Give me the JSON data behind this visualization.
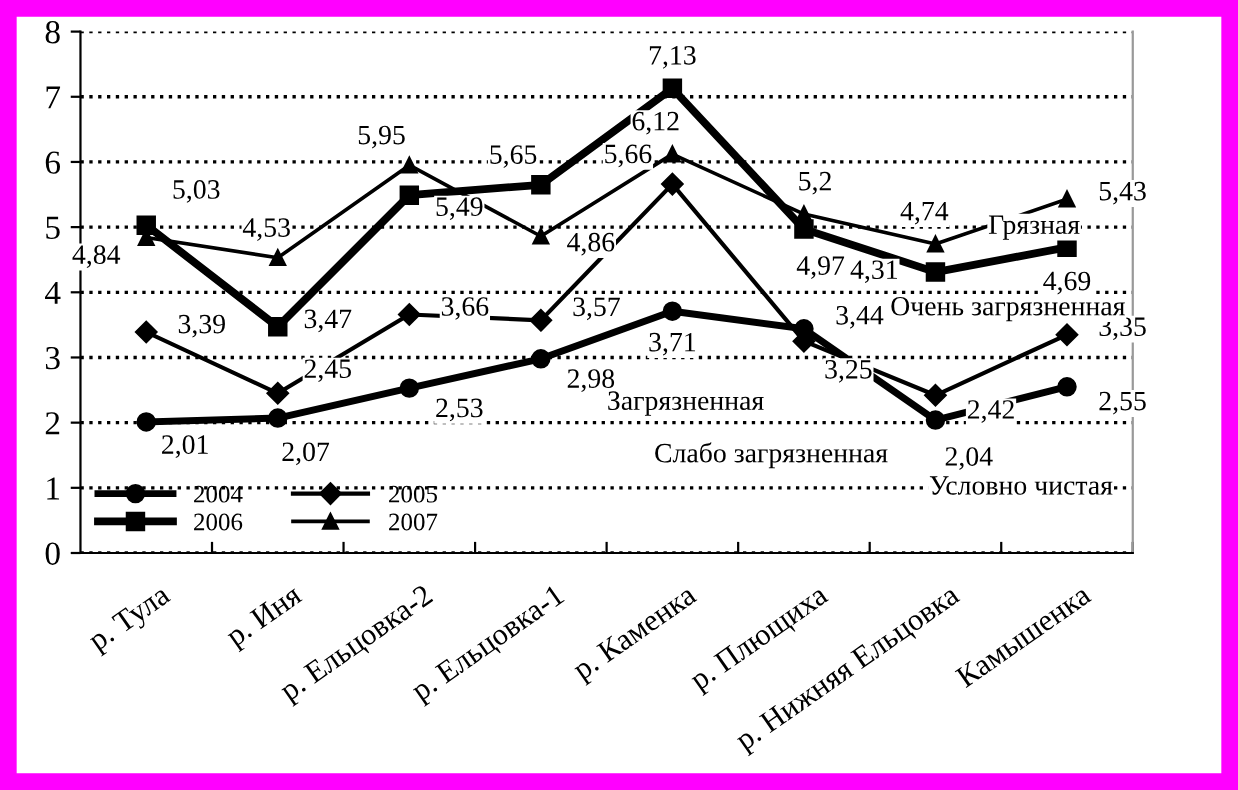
{
  "chart_data": {
    "type": "line",
    "categories": [
      "р. Тула",
      "р. Иня",
      "р. Ельцовка-2",
      "р. Ельцовка-1",
      "р. Каменка",
      "р. Плющиха",
      "р. Нижняя Ельцовка",
      "Камышенка"
    ],
    "series": [
      {
        "name": "2004",
        "color": "#000000",
        "marker": "circle",
        "values": [
          2.01,
          2.07,
          2.53,
          2.98,
          3.71,
          3.44,
          2.04,
          2.55
        ],
        "value_labels": [
          "2,01",
          "2,07",
          "2,53",
          "2,98",
          "3,71",
          "3,44",
          "2,04",
          "2,55"
        ]
      },
      {
        "name": "2005",
        "color": "#000000",
        "marker": "diamond",
        "values": [
          3.39,
          2.45,
          3.66,
          3.57,
          5.66,
          3.25,
          2.42,
          3.35
        ],
        "value_labels": [
          "3,39",
          "2,45",
          "3,66",
          "3,57",
          "5,66",
          "3,25",
          "2,42",
          "3,35"
        ]
      },
      {
        "name": "2006",
        "color": "#000000",
        "marker": "square",
        "values": [
          5.03,
          3.47,
          5.49,
          5.65,
          7.13,
          4.97,
          4.31,
          4.69
        ],
        "value_labels": [
          "5,03",
          "3,47",
          "5,49",
          "5,65",
          "7,13",
          "4,97",
          "4,31",
          "4,69"
        ]
      },
      {
        "name": "2007",
        "color": "#000000",
        "marker": "triangle",
        "values": [
          4.84,
          4.53,
          5.95,
          4.86,
          6.12,
          5.2,
          4.74,
          5.43
        ],
        "value_labels": [
          "4,84",
          "4,53",
          "5,95",
          "4,86",
          "6,12",
          "5,2",
          "4,74",
          "5,43"
        ]
      }
    ],
    "ylim": [
      0,
      8
    ],
    "yticks": [
      0,
      1,
      2,
      3,
      4,
      5,
      6,
      7,
      8
    ],
    "grid": "y",
    "legend": "bottom left",
    "line_style": "solid",
    "annotations": [
      "Грязная",
      "Очень загрязненная",
      "Загрязненная",
      "Слабо загрязненная",
      "Условно чистая"
    ]
  }
}
